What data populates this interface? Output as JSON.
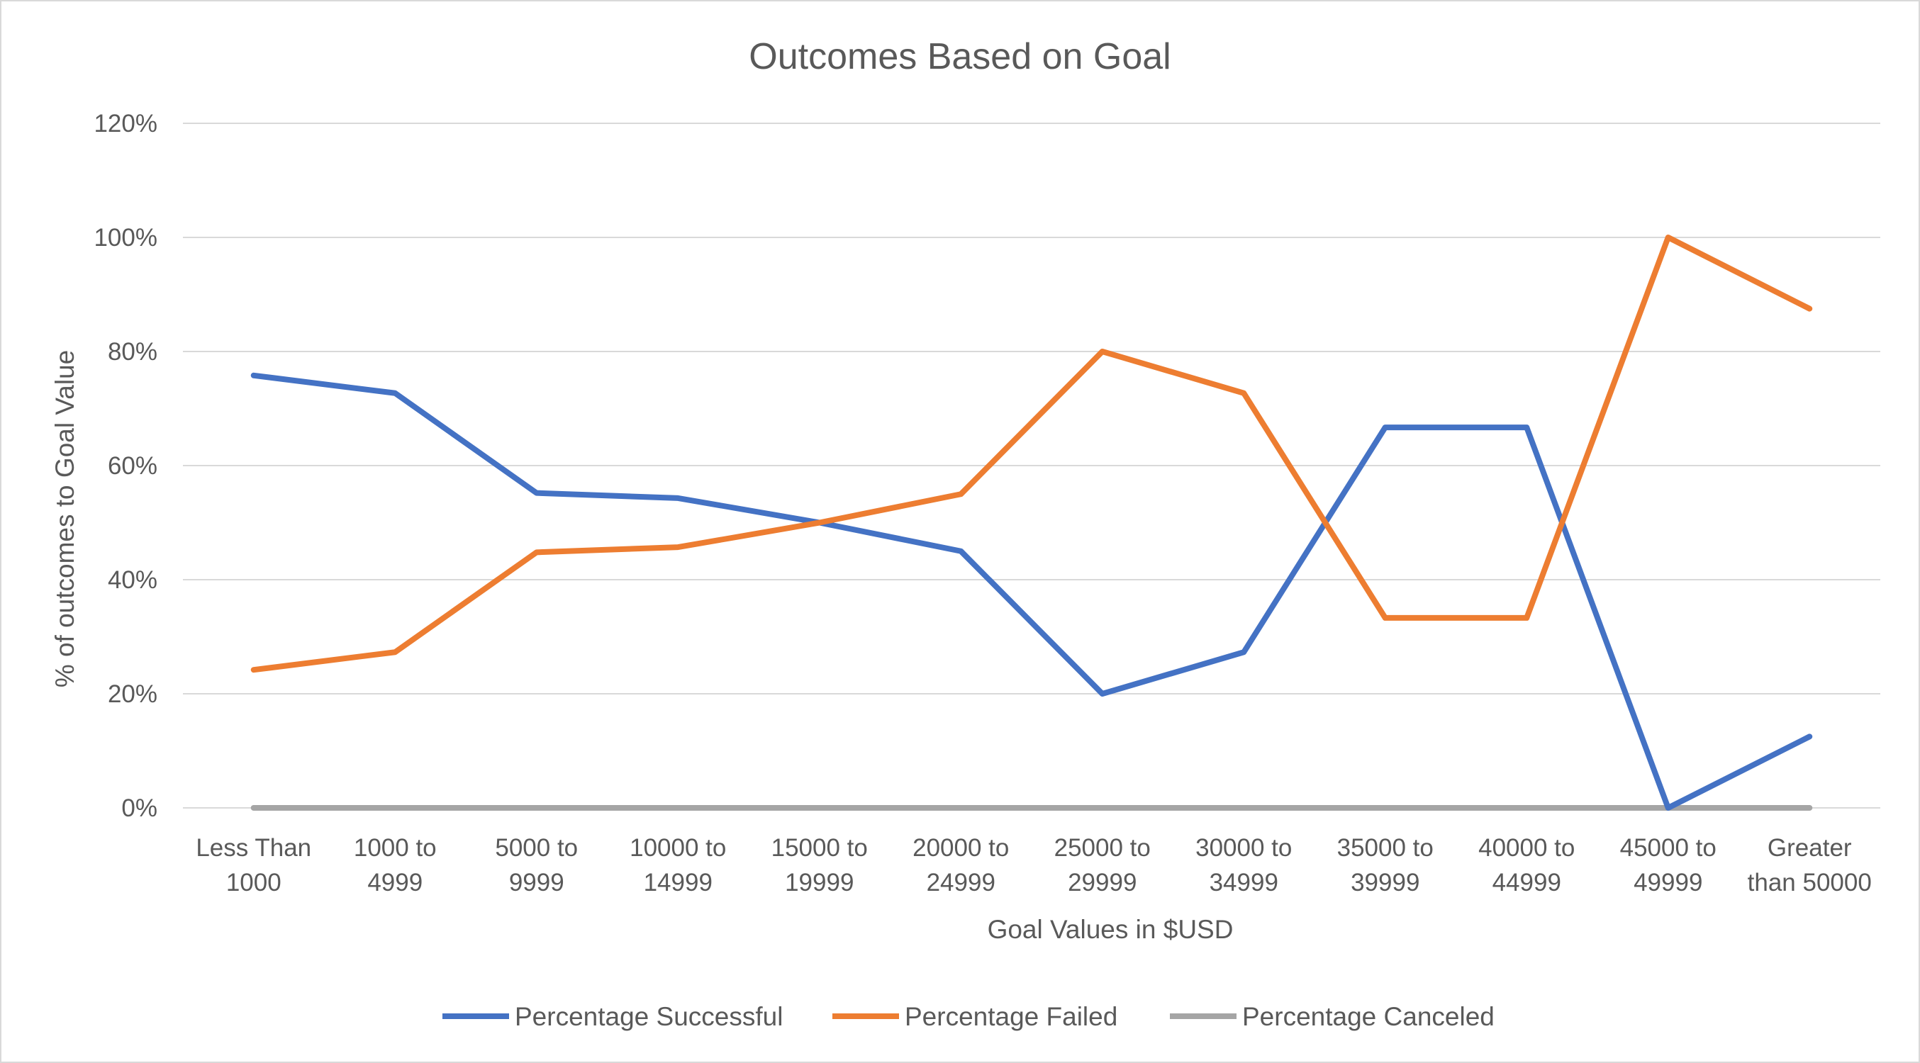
{
  "chart_data": {
    "type": "line",
    "title": "Outcomes Based on Goal",
    "xlabel": "Goal Values in $USD",
    "ylabel": "% of outcomes to Goal Value",
    "ylim": [
      0,
      1.2
    ],
    "y_ticks": [
      0,
      0.2,
      0.4,
      0.6,
      0.8,
      1.0,
      1.2
    ],
    "y_tick_labels": [
      "0%",
      "20%",
      "40%",
      "60%",
      "80%",
      "100%",
      "120%"
    ],
    "grid": true,
    "legend_position": "bottom",
    "categories": [
      [
        "Less Than",
        "1000"
      ],
      [
        "1000 to",
        "4999"
      ],
      [
        "5000 to",
        "9999"
      ],
      [
        "10000 to",
        "14999"
      ],
      [
        "15000 to",
        "19999"
      ],
      [
        "20000 to",
        "24999"
      ],
      [
        "25000 to",
        "29999"
      ],
      [
        "30000 to",
        "34999"
      ],
      [
        "35000 to",
        "39999"
      ],
      [
        "40000 to",
        "44999"
      ],
      [
        "45000 to",
        "49999"
      ],
      [
        "Greater",
        "than 50000"
      ]
    ],
    "series": [
      {
        "name": "Percentage Successful",
        "color": "#4472c4",
        "values": [
          0.758,
          0.727,
          0.552,
          0.543,
          0.5,
          0.45,
          0.2,
          0.273,
          0.667,
          0.667,
          0.0,
          0.125
        ]
      },
      {
        "name": "Percentage Failed",
        "color": "#ed7d31",
        "values": [
          0.242,
          0.273,
          0.448,
          0.457,
          0.5,
          0.55,
          0.8,
          0.727,
          0.333,
          0.333,
          1.0,
          0.875
        ]
      },
      {
        "name": "Percentage Canceled",
        "color": "#a5a5a5",
        "values": [
          0,
          0,
          0,
          0,
          0,
          0,
          0,
          0,
          0,
          0,
          0,
          0
        ]
      }
    ]
  }
}
